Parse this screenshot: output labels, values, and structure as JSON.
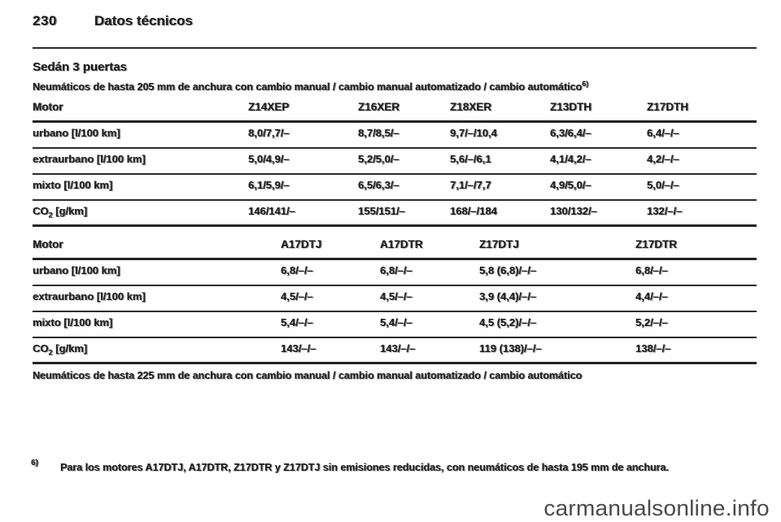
{
  "page": {
    "number": "230",
    "title": "Datos técnicos",
    "section_title": "Sedán 3 puertas",
    "intro": "Neumáticos de hasta 205 mm de anchura con cambio manual / cambio manual automatizado / cambio automático",
    "intro_footnote_ref": "6)",
    "closing_note": "Neumáticos de hasta 225 mm de anchura con cambio manual / cambio manual automatizado / cambio automático",
    "footnote": {
      "ref": "6)",
      "text": "Para los motores A17DTJ, A17DTR, Z17DTR y Z17DTJ sin emisiones reducidas, con neumáticos de hasta 195 mm de anchura."
    },
    "watermark": "carmanualsonline.info"
  },
  "labels": {
    "co2_main": "CO",
    "co2_sub": "2",
    "co2_unit": " [g/km]"
  },
  "tables": [
    {
      "header": [
        "Motor",
        "Z14XEP",
        "Z16XER",
        "Z18XER",
        "Z13DTH",
        "Z17DTH"
      ],
      "rows": [
        {
          "label": "urbano [l/100 km]",
          "values": [
            "8,0/7,7/–",
            "8,7/8,5/–",
            "9,7/–/10,4",
            "6,3/6,4/–",
            "6,4/–/–"
          ]
        },
        {
          "label": "extraurbano [l/100 km]",
          "values": [
            "5,0/4,9/–",
            "5,2/5,0/–",
            "5,6/–/6,1",
            "4,1/4,2/–",
            "4,2/–/–"
          ]
        },
        {
          "label": "mixto [l/100 km]",
          "values": [
            "6,1/5,9/–",
            "6,5/6,3/–",
            "7,1/–/7,7",
            "4,9/5,0/–",
            "5,0/–/–"
          ]
        },
        {
          "label": "CO2 [g/km]",
          "values": [
            "146/141/–",
            "155/151/–",
            "168/–/184",
            "130/132/–",
            "132/–/–"
          ]
        }
      ]
    },
    {
      "header": [
        "Motor",
        "A17DTJ",
        "A17DTR",
        "Z17DTJ",
        "Z17DTR"
      ],
      "rows": [
        {
          "label": "urbano [l/100 km]",
          "values": [
            "6,8/–/–",
            "6,8/–/–",
            "5,8 (6,8)/–/–",
            "6,8/–/–"
          ]
        },
        {
          "label": "extraurbano [l/100 km]",
          "values": [
            "4,5/–/–",
            "4,5/–/–",
            "3,9 (4,4)/–/–",
            "4,4/–/–"
          ]
        },
        {
          "label": "mixto [l/100 km]",
          "values": [
            "5,4/–/–",
            "5,4/–/–",
            "4,5 (5,2)/–/–",
            "5,2/–/–"
          ]
        },
        {
          "label": "CO2 [g/km]",
          "values": [
            "143/–/–",
            "143/–/–",
            "119 (138)/–/–",
            "138/–/–"
          ]
        }
      ]
    }
  ]
}
